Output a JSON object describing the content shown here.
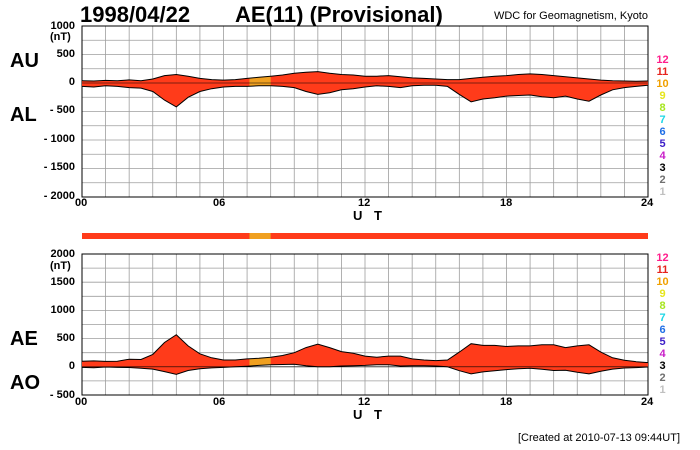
{
  "header": {
    "date": "1998/04/22",
    "title": "AE(11) (Provisional)",
    "source": "WDC for Geomagnetism, Kyoto"
  },
  "footer": {
    "created": "[Created at 2010-07-13 09:44UT]"
  },
  "colors": {
    "background": "#ffffff",
    "grid": "#9e9e9e",
    "fill": "#ff3b1a",
    "fill_partial": "#f0a020",
    "outline": "#000000",
    "stripe": "#ff3b1a"
  },
  "legend_levels": [
    {
      "label": "12",
      "color": "#ff1e8c"
    },
    {
      "label": "11",
      "color": "#e6231e"
    },
    {
      "label": "10",
      "color": "#f0a000"
    },
    {
      "label": "9",
      "color": "#e6e61e"
    },
    {
      "label": "8",
      "color": "#a6e61e"
    },
    {
      "label": "7",
      "color": "#1ed7e6"
    },
    {
      "label": "6",
      "color": "#1e6ee6"
    },
    {
      "label": "5",
      "color": "#3c1ec8"
    },
    {
      "label": "4",
      "color": "#c81ec8"
    },
    {
      "label": "3",
      "color": "#000000"
    },
    {
      "label": "2",
      "color": "#707070"
    },
    {
      "label": "1",
      "color": "#c0c0c0"
    }
  ],
  "chart_data": [
    {
      "type": "area",
      "panel": "AU/AL",
      "labels": {
        "upper": "AU",
        "lower": "AL"
      },
      "unit": "(nT)",
      "xlabel": "U T",
      "xlim": [
        0,
        24
      ],
      "xticks": [
        "00",
        "06",
        "12",
        "18",
        "24"
      ],
      "ylim": [
        -2000,
        1000
      ],
      "yticks": [
        "1000",
        "500",
        "0",
        "- 500",
        "- 1000",
        "- 1500",
        "- 2000"
      ],
      "ytick_values": [
        1000,
        500,
        0,
        -500,
        -1000,
        -1500,
        -2000
      ],
      "grid": true,
      "partial_interval_hours": [
        7.1,
        8.0
      ],
      "hours": [
        0,
        0.5,
        1,
        1.5,
        2,
        2.5,
        3,
        3.5,
        4,
        4.5,
        5,
        5.5,
        6,
        6.5,
        7,
        7.5,
        8,
        8.5,
        9,
        9.5,
        10,
        10.5,
        11,
        11.5,
        12,
        12.5,
        13,
        13.5,
        14,
        14.5,
        15,
        15.5,
        16,
        16.5,
        17,
        17.5,
        18,
        18.5,
        19,
        19.5,
        20,
        20.5,
        21,
        21.5,
        22,
        22.5,
        23,
        23.5,
        24
      ],
      "series": [
        {
          "name": "AU",
          "values": [
            40,
            35,
            45,
            40,
            55,
            40,
            70,
            130,
            150,
            120,
            80,
            60,
            50,
            60,
            80,
            100,
            120,
            140,
            170,
            190,
            200,
            170,
            150,
            140,
            120,
            120,
            130,
            110,
            90,
            80,
            70,
            60,
            60,
            80,
            100,
            120,
            130,
            150,
            160,
            150,
            130,
            110,
            90,
            70,
            50,
            40,
            35,
            30,
            35
          ]
        },
        {
          "name": "AL",
          "values": [
            -60,
            -70,
            -50,
            -60,
            -80,
            -90,
            -150,
            -300,
            -420,
            -250,
            -150,
            -100,
            -70,
            -60,
            -60,
            -50,
            -50,
            -60,
            -80,
            -150,
            -200,
            -170,
            -120,
            -100,
            -70,
            -50,
            -60,
            -80,
            -50,
            -40,
            -40,
            -60,
            -200,
            -330,
            -280,
            -260,
            -230,
            -220,
            -210,
            -240,
            -260,
            -230,
            -280,
            -320,
            -210,
            -120,
            -80,
            -60,
            -40
          ]
        }
      ]
    },
    {
      "type": "area",
      "panel": "AE/AO",
      "labels": {
        "upper": "AE",
        "lower": "AO"
      },
      "unit": "(nT)",
      "xlabel": "U T",
      "xlim": [
        0,
        24
      ],
      "xticks": [
        "00",
        "06",
        "12",
        "18",
        "24"
      ],
      "ylim": [
        -500,
        2000
      ],
      "yticks": [
        "2000",
        "1500",
        "1000",
        "500",
        "0",
        "- 500"
      ],
      "ytick_values": [
        2000,
        1500,
        1000,
        500,
        0,
        -500
      ],
      "grid": true,
      "partial_interval_hours": [
        7.1,
        8.0
      ],
      "hours": [
        0,
        0.5,
        1,
        1.5,
        2,
        2.5,
        3,
        3.5,
        4,
        4.5,
        5,
        5.5,
        6,
        6.5,
        7,
        7.5,
        8,
        8.5,
        9,
        9.5,
        10,
        10.5,
        11,
        11.5,
        12,
        12.5,
        13,
        13.5,
        14,
        14.5,
        15,
        15.5,
        16,
        16.5,
        17,
        17.5,
        18,
        18.5,
        19,
        19.5,
        20,
        20.5,
        21,
        21.5,
        22,
        22.5,
        23,
        23.5,
        24
      ],
      "series": [
        {
          "name": "AE",
          "values": [
            100,
            105,
            95,
            100,
            135,
            130,
            220,
            430,
            570,
            370,
            230,
            160,
            120,
            120,
            140,
            150,
            170,
            200,
            250,
            340,
            400,
            340,
            270,
            240,
            190,
            170,
            190,
            190,
            140,
            120,
            110,
            120,
            260,
            410,
            380,
            380,
            360,
            370,
            370,
            390,
            390,
            340,
            370,
            390,
            260,
            160,
            115,
            90,
            75
          ]
        },
        {
          "name": "AO",
          "values": [
            -10,
            -18,
            -3,
            -10,
            -13,
            -25,
            -40,
            -85,
            -135,
            -65,
            -35,
            -20,
            -10,
            0,
            10,
            25,
            35,
            40,
            45,
            20,
            0,
            0,
            15,
            20,
            25,
            35,
            35,
            15,
            20,
            20,
            15,
            0,
            -70,
            -125,
            -90,
            -70,
            -50,
            -35,
            -25,
            -45,
            -65,
            -60,
            -95,
            -125,
            -80,
            -40,
            -22,
            -15,
            -3
          ]
        }
      ]
    }
  ]
}
